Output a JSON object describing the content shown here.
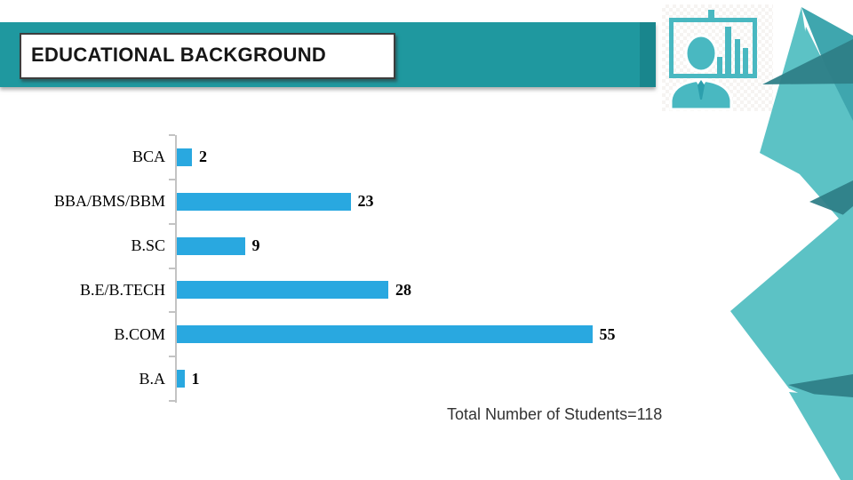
{
  "slide": {
    "title": "EDUCATIONAL BACKGROUND",
    "footer_note": "Total Number of Students=118"
  },
  "icons": {
    "top_right": "presenter-with-bar-chart-icon"
  },
  "colors": {
    "header_teal": "#1F989F",
    "bar_blue": "#29A8E0",
    "decor_light": "#5CC2C5",
    "decor_mid": "#3FA6AE",
    "decor_dark": "#2F7E87",
    "icon_teal": "#49B8C1",
    "icon_tie": "#2C9FAD"
  },
  "chart_data": {
    "type": "bar",
    "orientation": "horizontal",
    "title": "",
    "xlabel": "",
    "ylabel": "",
    "categories": [
      "BCA",
      "BBA/BMS/BBM",
      "B.SC",
      "B.E/B.TECH",
      "B.COM",
      "B.A"
    ],
    "values": [
      2,
      23,
      9,
      28,
      55,
      1
    ],
    "xlim": [
      0,
      60
    ],
    "grid": false,
    "legend": false,
    "data_labels": true,
    "annotation": "Total Number of Students=118"
  }
}
